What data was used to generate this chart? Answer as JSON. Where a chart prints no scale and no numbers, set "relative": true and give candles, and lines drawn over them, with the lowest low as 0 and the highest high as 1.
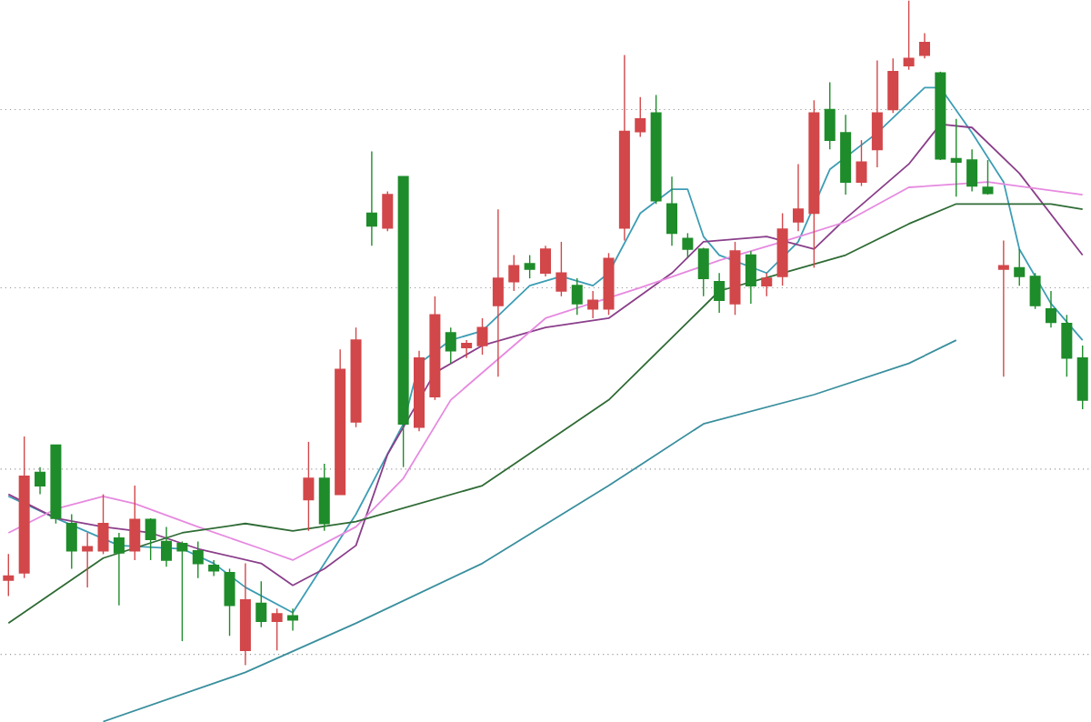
{
  "chart_data": {
    "type": "candlestick",
    "relative": true,
    "categories": [
      null,
      null,
      null,
      null,
      null,
      null,
      null,
      null,
      null,
      null,
      null,
      null,
      null,
      null,
      null,
      null,
      null,
      null,
      null,
      null,
      null,
      null,
      null,
      null,
      null,
      null,
      null,
      null,
      null,
      null,
      null,
      null,
      null,
      null,
      null,
      null,
      null,
      null,
      null,
      null,
      null,
      null,
      null,
      null,
      null,
      null,
      null,
      null,
      null,
      null,
      null,
      null,
      null,
      null,
      null,
      null,
      null,
      null,
      null,
      null,
      null,
      null,
      null,
      null,
      null,
      null,
      null,
      null,
      null
    ],
    "ohlc": [
      [
        0.128,
        0.167,
        0.104,
        0.134
      ],
      [
        0.139,
        0.344,
        0.131,
        0.284
      ],
      [
        0.29,
        0.298,
        0.257,
        0.27
      ],
      [
        0.331,
        0.331,
        0.213,
        0.221
      ],
      [
        0.213,
        0.227,
        0.145,
        0.172
      ],
      [
        0.172,
        0.199,
        0.117,
        0.178
      ],
      [
        0.172,
        0.257,
        0.167,
        0.213
      ],
      [
        0.191,
        0.199,
        0.09,
        0.169
      ],
      [
        0.172,
        0.27,
        0.158,
        0.219
      ],
      [
        0.219,
        0.221,
        0.158,
        0.189
      ],
      [
        0.186,
        0.208,
        0.148,
        0.158
      ],
      [
        0.183,
        0.186,
        0.036,
        0.172
      ],
      [
        0.172,
        0.186,
        0.131,
        0.153
      ],
      [
        0.15,
        0.158,
        0.134,
        0.142
      ],
      [
        0.139,
        0.145,
        0.044,
        0.09
      ],
      [
        0.022,
        0.153,
        0,
        0.098
      ],
      [
        0.093,
        0.126,
        0.057,
        0.066
      ],
      [
        0.066,
        0.085,
        0.022,
        0.077
      ],
      [
        0.074,
        0.085,
        0.052,
        0.068
      ],
      [
        0.249,
        0.336,
        0.202,
        0.281
      ],
      [
        0.281,
        0.303,
        0.202,
        0.213
      ],
      [
        0.257,
        0.475,
        0.257,
        0.445
      ],
      [
        0.366,
        0.508,
        0.358,
        0.489
      ],
      [
        0.68,
        0.773,
        0.631,
        0.661
      ],
      [
        0.658,
        0.713,
        0.653,
        0.708
      ],
      [
        0.735,
        0.735,
        0.298,
        0.363
      ],
      [
        0.358,
        0.473,
        0.352,
        0.462
      ],
      [
        0.404,
        0.555,
        0.399,
        0.527
      ],
      [
        0.5,
        0.508,
        0.454,
        0.473
      ],
      [
        0.478,
        0.489,
        0.462,
        0.484
      ],
      [
        0.481,
        0.522,
        0.467,
        0.508
      ],
      [
        0.541,
        0.686,
        0.434,
        0.582
      ],
      [
        0.577,
        0.617,
        0.563,
        0.601
      ],
      [
        0.604,
        0.617,
        0.582,
        0.596
      ],
      [
        0.59,
        0.631,
        0.585,
        0.626
      ],
      [
        0.563,
        0.637,
        0.555,
        0.59
      ],
      [
        0.571,
        0.582,
        0.527,
        0.544
      ],
      [
        0.536,
        0.563,
        0.522,
        0.549
      ],
      [
        0.536,
        0.62,
        0.527,
        0.612
      ],
      [
        0.658,
        0.918,
        0.639,
        0.803
      ],
      [
        0.803,
        0.855,
        0.795,
        0.822
      ],
      [
        0.831,
        0.858,
        0.694,
        0.699
      ],
      [
        0.694,
        0.735,
        0.631,
        0.65
      ],
      [
        0.642,
        0.65,
        0.612,
        0.626
      ],
      [
        0.626,
        0.628,
        0.555,
        0.582
      ],
      [
        0.577,
        0.59,
        0.53,
        0.549
      ],
      [
        0.544,
        0.637,
        0.527,
        0.623
      ],
      [
        0.617,
        0.623,
        0.544,
        0.571
      ],
      [
        0.571,
        0.59,
        0.555,
        0.582
      ],
      [
        0.585,
        0.68,
        0.571,
        0.656
      ],
      [
        0.667,
        0.754,
        0.653,
        0.686
      ],
      [
        0.68,
        0.85,
        0.598,
        0.831
      ],
      [
        0.836,
        0.877,
        0.776,
        0.79
      ],
      [
        0.801,
        0.828,
        0.708,
        0.727
      ],
      [
        0.727,
        0.79,
        0.721,
        0.757
      ],
      [
        0.776,
        0.91,
        0.749,
        0.831
      ],
      [
        0.836,
        0.913,
        0.831,
        0.893
      ],
      [
        0.902,
        1,
        0.896,
        0.913
      ],
      [
        0.918,
        0.951,
        0.913,
        0.937
      ],
      [
        0.891,
        0.893,
        0.76,
        0.762
      ],
      [
        0.762,
        0.822,
        0.705,
        0.757
      ],
      [
        0.76,
        0.776,
        0.713,
        0.721
      ],
      [
        0.719,
        0.76,
        0.708,
        0.71
      ],
      [
        0.596,
        0.639,
        0.434,
        0.601
      ],
      [
        0.598,
        0.626,
        0.571,
        0.585
      ],
      [
        0.585,
        0.59,
        0.536,
        0.541
      ],
      [
        0.536,
        0.563,
        0.508,
        0.516
      ],
      [
        0.514,
        0.527,
        0.434,
        0.462
      ],
      [
        0.462,
        0.481,
        0.385,
        0.399
      ]
    ],
    "series": [
      {
        "type": "line",
        "color": "#3d9db5",
        "values": [
          0.254,
          null,
          null,
          0.221,
          null,
          null,
          null,
          0.18,
          null,
          null,
          null,
          0.175,
          null,
          0.153,
          null,
          0.117,
          null,
          null,
          0.079,
          null,
          null,
          null,
          0.227,
          null,
          null,
          0.363,
          0.454,
          null,
          0.489,
          null,
          0.503,
          null,
          null,
          0.571,
          null,
          0.585,
          null,
          0.571,
          0.59,
          null,
          0.68,
          null,
          0.716,
          0.716,
          0.645,
          0.617,
          null,
          null,
          0.59,
          null,
          0.637,
          null,
          0.746,
          null,
          null,
          0.801,
          null,
          null,
          0.869,
          0.869,
          null,
          0.801,
          null,
          0.727,
          0.626,
          null,
          0.544,
          null,
          0.489
        ]
      },
      {
        "type": "line",
        "color": "#8a3f8a",
        "values": [
          0.257,
          null,
          null,
          0.221,
          null,
          null,
          0.208,
          null,
          null,
          0.199,
          null,
          null,
          0.175,
          null,
          null,
          null,
          0.153,
          null,
          0.12,
          null,
          0.145,
          null,
          0.18,
          null,
          0.317,
          null,
          null,
          0.44,
          null,
          null,
          0.481,
          null,
          null,
          null,
          0.508,
          null,
          null,
          null,
          0.522,
          null,
          null,
          null,
          0.59,
          null,
          0.637,
          null,
          null,
          null,
          0.645,
          null,
          null,
          0.626,
          null,
          0.672,
          null,
          null,
          null,
          0.754,
          null,
          0.814,
          null,
          0.809,
          null,
          null,
          0.74,
          null,
          null,
          null,
          0.617
        ]
      },
      {
        "type": "line",
        "color": "#e68ae0",
        "values": [
          0.199,
          null,
          null,
          0.235,
          null,
          null,
          0.254,
          null,
          0.243,
          null,
          null,
          null,
          0.208,
          null,
          null,
          null,
          0.175,
          null,
          0.158,
          null,
          null,
          null,
          0.208,
          null,
          null,
          0.281,
          null,
          null,
          0.399,
          null,
          null,
          null,
          null,
          null,
          0.522,
          null,
          null,
          null,
          null,
          null,
          0.568,
          null,
          null,
          null,
          null,
          0.609,
          null,
          null,
          null,
          0.637,
          null,
          null,
          null,
          0.667,
          null,
          null,
          null,
          0.719,
          null,
          null,
          null,
          null,
          0.727,
          null,
          null,
          null,
          null,
          null,
          0.708
        ]
      },
      {
        "type": "line",
        "color": "#2f6b35",
        "values": [
          0.063,
          null,
          null,
          null,
          null,
          null,
          0.161,
          null,
          null,
          null,
          null,
          0.199,
          null,
          null,
          null,
          0.213,
          null,
          null,
          0.202,
          null,
          null,
          null,
          0.216,
          null,
          null,
          null,
          null,
          null,
          null,
          null,
          0.27,
          null,
          null,
          null,
          null,
          null,
          null,
          null,
          0.399,
          null,
          null,
          null,
          null,
          null,
          null,
          0.563,
          null,
          null,
          null,
          0.59,
          null,
          null,
          null,
          0.617,
          null,
          null,
          null,
          0.664,
          null,
          null,
          0.694,
          null,
          null,
          null,
          null,
          null,
          0.694,
          null,
          0.686
        ]
      },
      {
        "type": "line",
        "color": "#3a8f9e",
        "values": [
          null,
          null,
          null,
          null,
          null,
          null,
          -0.085,
          null,
          null,
          null,
          null,
          null,
          null,
          null,
          null,
          -0.011,
          null,
          null,
          null,
          null,
          null,
          null,
          0.063,
          null,
          null,
          null,
          null,
          null,
          null,
          null,
          0.153,
          null,
          null,
          null,
          null,
          null,
          null,
          null,
          0.27,
          null,
          null,
          null,
          null,
          null,
          0.363,
          null,
          null,
          null,
          null,
          null,
          null,
          0.407,
          null,
          null,
          null,
          null,
          null,
          0.454,
          null,
          null,
          0.489,
          null,
          null,
          null,
          null,
          null,
          null,
          null,
          null
        ]
      }
    ],
    "ref_lines": [
      {
        "axis": "y",
        "value": 0.836,
        "color": "#999999",
        "line_style": "dotted"
      },
      {
        "axis": "y",
        "value": 0.568,
        "color": "#999999",
        "line_style": "dotted"
      },
      {
        "axis": "y",
        "value": 0.295,
        "color": "#999999",
        "line_style": "dotted"
      },
      {
        "axis": "y",
        "value": 0.016,
        "color": "#999999",
        "line_style": "dotted"
      }
    ]
  }
}
